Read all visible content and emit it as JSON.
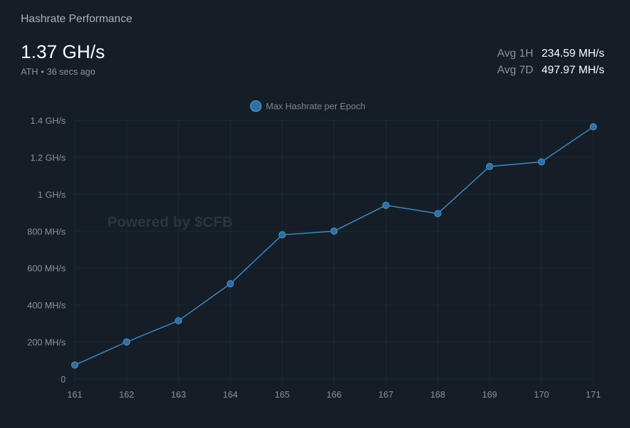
{
  "header": {
    "title": "Hashrate Performance",
    "ath_value": "1.37 GH/s",
    "ath_label": "ATH",
    "ath_time": "36 secs ago",
    "avg_1h_label": "Avg 1H",
    "avg_1h_value": "234.59 MH/s",
    "avg_7d_label": "Avg 7D",
    "avg_7d_value": "497.97 MH/s"
  },
  "watermark": "Powered by $CFB",
  "colors": {
    "background": "#151d26",
    "line": "#3a86c0",
    "point_fill": "#2f6f9f"
  },
  "chart_data": {
    "type": "line",
    "title": "",
    "xlabel": "",
    "ylabel": "",
    "legend": "top-center",
    "grid": true,
    "x": [
      161,
      162,
      163,
      164,
      165,
      166,
      167,
      168,
      169,
      170,
      171
    ],
    "series": [
      {
        "name": "Max Hashrate per Epoch",
        "values": [
          75,
          200,
          315,
          515,
          780,
          800,
          940,
          895,
          1150,
          1175,
          1365
        ],
        "unit": "MH/s"
      }
    ],
    "ylim": [
      0,
      1400
    ],
    "yticks": [
      0,
      200,
      400,
      600,
      800,
      1000,
      1200,
      1400
    ],
    "ytick_labels": [
      "0",
      "200 MH/s",
      "400 MH/s",
      "600 MH/s",
      "800 MH/s",
      "1 GH/s",
      "1.2 GH/s",
      "1.4 GH/s"
    ]
  }
}
